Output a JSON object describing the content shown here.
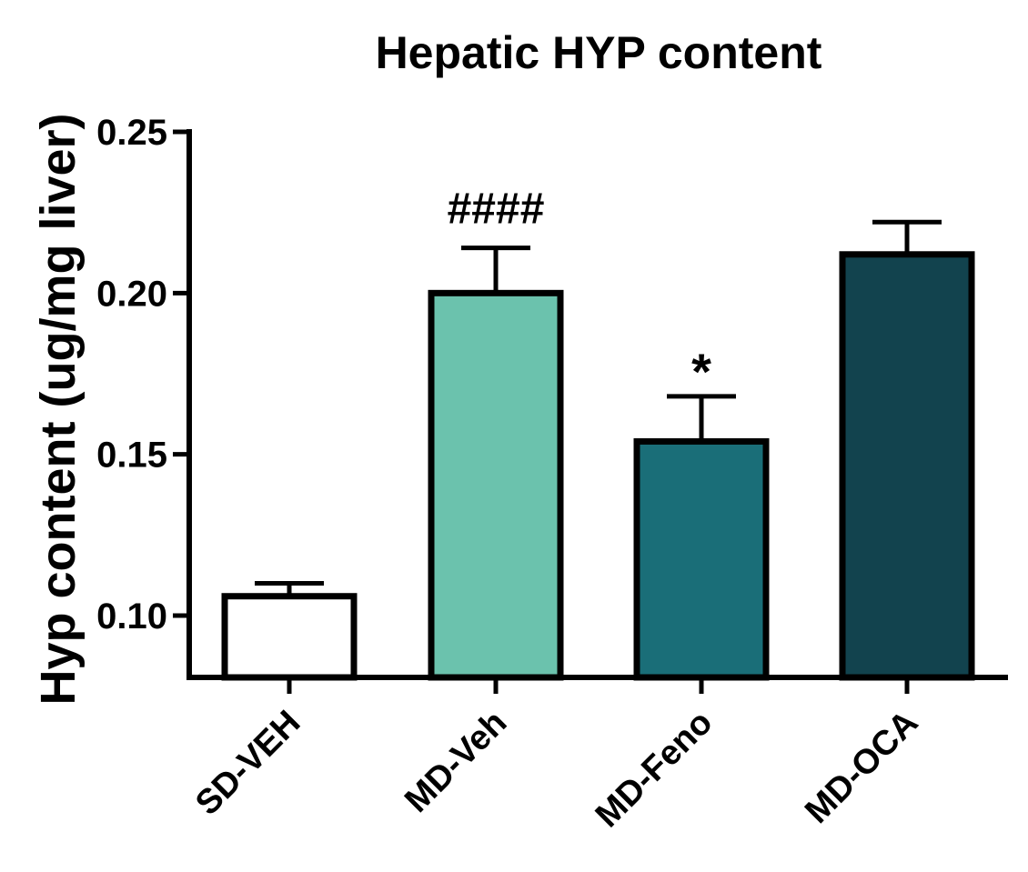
{
  "chart_data": {
    "type": "bar",
    "title": "Hepatic HYP content",
    "xlabel": "",
    "ylabel": "Hyp content (ug/mg liver)",
    "ylim": [
      0.08,
      0.25
    ],
    "yticks": [
      "0.10",
      "0.15",
      "0.20",
      "0.25"
    ],
    "categories": [
      "SD-VEH",
      "MD-Veh",
      "MD-Feno",
      "MD-OCA"
    ],
    "values": [
      0.106,
      0.2,
      0.154,
      0.212
    ],
    "errors": [
      0.004,
      0.014,
      0.014,
      0.01
    ],
    "colors": [
      "#ffffff",
      "#6bc2ad",
      "#1a6e78",
      "#12434e"
    ],
    "annotations": [
      "",
      "####",
      "*",
      ""
    ],
    "grid": false,
    "legend": "none"
  }
}
